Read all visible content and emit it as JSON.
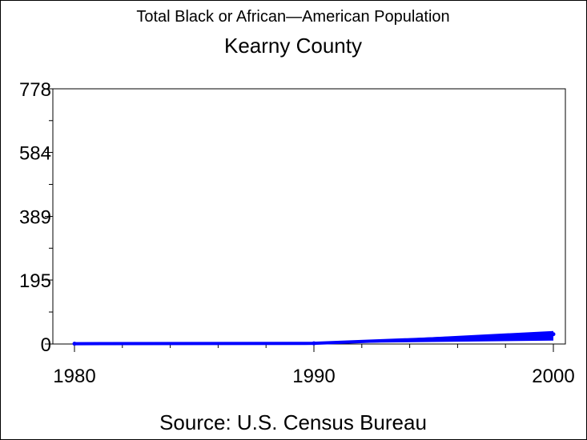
{
  "chart_data": {
    "type": "line",
    "title": "Total Black or African—American Population",
    "subtitle": "Kearny County",
    "source": "Source: U.S. Census Bureau",
    "x": [
      1980,
      1990,
      2000
    ],
    "series": [
      {
        "values": [
          1,
          2,
          30
        ]
      }
    ],
    "xlim": [
      1980,
      2000
    ],
    "ylim": [
      0,
      778
    ],
    "y_ticks": [
      0,
      195,
      389,
      584,
      778
    ],
    "x_ticks": [
      1980,
      1990,
      2000
    ],
    "colors": {
      "series": "#0000ff",
      "axis": "#000000"
    },
    "grid": false
  }
}
